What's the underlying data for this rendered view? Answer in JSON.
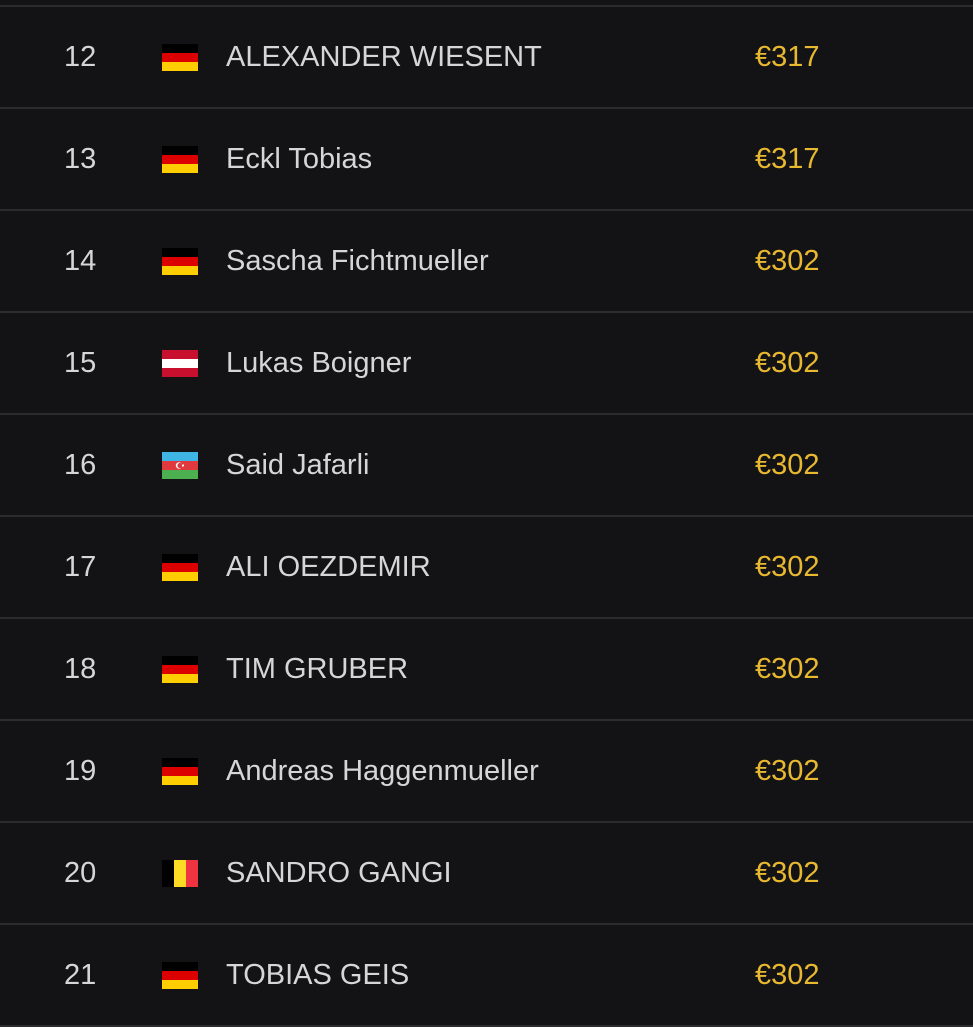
{
  "colors": {
    "background": "#131315",
    "text": "#d6d6d8",
    "prize": "#e8b930",
    "divider": "#2c2c2f"
  },
  "rows": [
    {
      "rank": "12",
      "flag": "de-flag",
      "name": "ALEXANDER WIESENT",
      "prize": "€317"
    },
    {
      "rank": "13",
      "flag": "de-flag",
      "name": "Eckl Tobias",
      "prize": "€317"
    },
    {
      "rank": "14",
      "flag": "de-flag",
      "name": "Sascha Fichtmueller",
      "prize": "€302"
    },
    {
      "rank": "15",
      "flag": "at-flag",
      "name": "Lukas Boigner",
      "prize": "€302"
    },
    {
      "rank": "16",
      "flag": "az-flag",
      "name": "Said Jafarli",
      "prize": "€302"
    },
    {
      "rank": "17",
      "flag": "de-flag",
      "name": "ALI OEZDEMIR",
      "prize": "€302"
    },
    {
      "rank": "18",
      "flag": "de-flag",
      "name": "TIM GRUBER",
      "prize": "€302"
    },
    {
      "rank": "19",
      "flag": "de-flag",
      "name": "Andreas Haggenmueller",
      "prize": "€302"
    },
    {
      "rank": "20",
      "flag": "be-flag",
      "name": "SANDRO GANGI",
      "prize": "€302"
    },
    {
      "rank": "21",
      "flag": "de-flag",
      "name": "TOBIAS GEIS",
      "prize": "€302"
    }
  ]
}
